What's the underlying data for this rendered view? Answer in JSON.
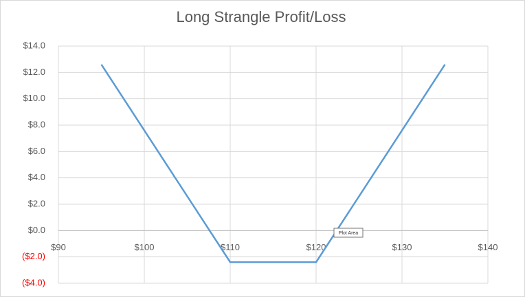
{
  "chart_data": {
    "type": "line",
    "title": "Long Strangle Profit/Loss",
    "x": [
      95,
      110,
      120,
      135
    ],
    "values": [
      12.6,
      -2.4,
      -2.4,
      12.6
    ],
    "color": "#5b9bd5",
    "xlim": [
      90,
      140
    ],
    "xticks": [
      {
        "value": 90,
        "label": "$90"
      },
      {
        "value": 100,
        "label": "$100"
      },
      {
        "value": 110,
        "label": "$110"
      },
      {
        "value": 120,
        "label": "$120"
      },
      {
        "value": 130,
        "label": "$130"
      },
      {
        "value": 140,
        "label": "$140"
      }
    ],
    "ylim": [
      -4,
      14
    ],
    "yticks": [
      {
        "value": -4,
        "label": "($4.0)"
      },
      {
        "value": -2,
        "label": "($2.0)"
      },
      {
        "value": 0,
        "label": "$0.0"
      },
      {
        "value": 2,
        "label": "$2.0"
      },
      {
        "value": 4,
        "label": "$4.0"
      },
      {
        "value": 6,
        "label": "$6.0"
      },
      {
        "value": 8,
        "label": "$8.0"
      },
      {
        "value": 10,
        "label": "$10.0"
      },
      {
        "value": 12,
        "label": "$12.0"
      },
      {
        "value": 14,
        "label": "$14.0"
      }
    ],
    "negative_color": "#ff0000",
    "grid": true,
    "tooltip": "Plot Area"
  }
}
